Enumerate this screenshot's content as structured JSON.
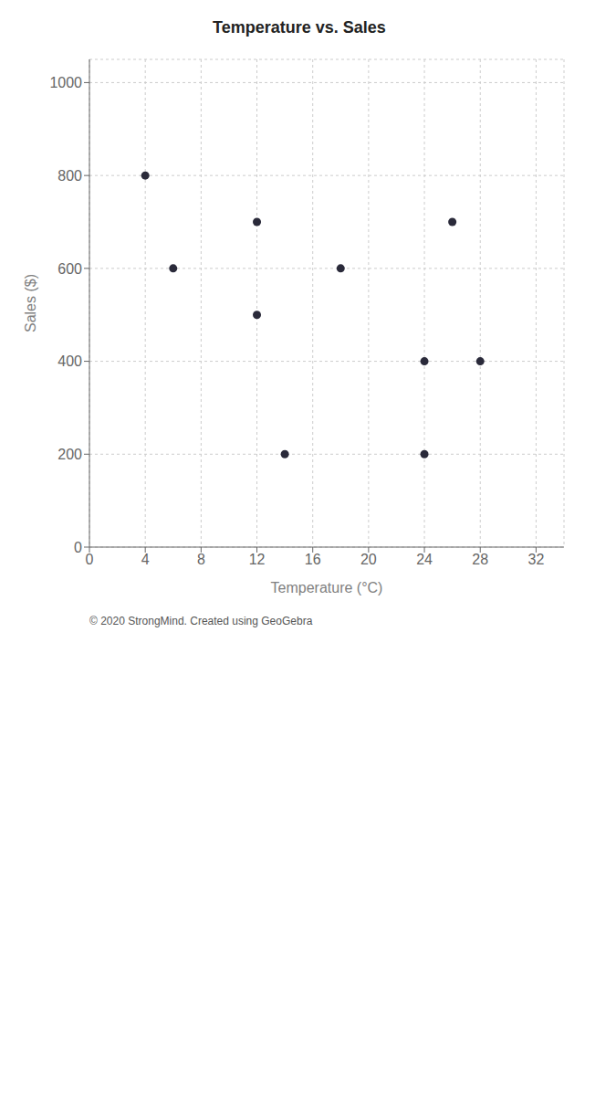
{
  "chart_data": {
    "type": "scatter",
    "title": "Temperature vs. Sales",
    "x_label": "Temperature (°C)",
    "y_label": "Sales ($)",
    "x": [
      4,
      6,
      12,
      12,
      14,
      18,
      24,
      24,
      26,
      28
    ],
    "values": [
      800,
      600,
      700,
      500,
      200,
      600,
      200,
      400,
      700,
      400
    ],
    "color": "#2a2a3a",
    "xlim": [
      0,
      34
    ],
    "ylim": [
      0,
      1050
    ],
    "xticks": [
      0,
      4,
      8,
      12,
      16,
      20,
      24,
      28,
      32
    ],
    "yticks": [
      0,
      200,
      400,
      600,
      800,
      1000
    ],
    "grid": true,
    "annotations": [
      "© 2020 StrongMind. Created using GeoGebra"
    ]
  }
}
